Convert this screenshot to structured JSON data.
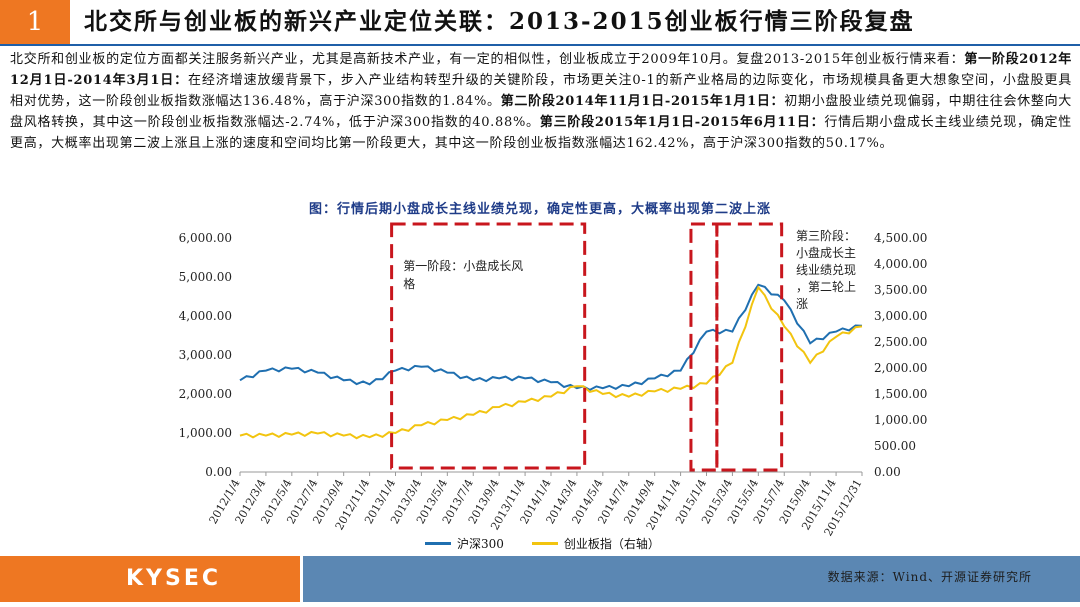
{
  "header": {
    "number": "1",
    "title": "北交所与创业板的新兴产业定位关联：2013-2015创业板行情三阶段复盘"
  },
  "paragraph": {
    "intro": "北交所和创业板的定位方面都关注服务新兴产业，尤其是高新技术产业，有一定的相似性，创业板成立于2009年10月。复盘2013-2015年创业板行情来看：",
    "p1_head": "第一阶段2012年12月1日-2014年3月1日：",
    "p1_body": "在经济增速放缓背景下，步入产业结构转型升级的关键阶段，市场更关注0-1的新产业格局的边际变化，市场规模具备更大想象空间，小盘股更具相对优势，这一阶段创业板指数涨幅达136.48%，高于沪深300指数的1.84%。",
    "p2_head": "第二阶段2014年11月1日-2015年1月1日：",
    "p2_body": "初期小盘股业绩兑现偏弱，中期往往会休整向大盘风格转换，其中这一阶段创业板指数涨幅达-2.74%，低于沪深300指数的40.88%。",
    "p3_head": "第三阶段2015年1月1日-2015年6月11日：",
    "p3_body": "行情后期小盘成长主线业绩兑现，确定性更高，大概率出现第二波上涨且上涨的速度和空间均比第一阶段更大，其中这一阶段创业板指数涨幅达162.42%，高于沪深300指数的50.17%。"
  },
  "figure_title": "图：行情后期小盘成长主线业绩兑现，确定性更高，大概率出现第二波上涨",
  "chart_data": {
    "type": "line",
    "x": [
      "2012/1/4",
      "2012/3/4",
      "2012/5/4",
      "2012/7/4",
      "2012/9/4",
      "2012/11/4",
      "2013/1/4",
      "2013/3/4",
      "2013/5/4",
      "2013/7/4",
      "2013/9/4",
      "2013/11/4",
      "2014/1/4",
      "2014/3/4",
      "2014/5/4",
      "2014/7/4",
      "2014/9/4",
      "2014/11/4",
      "2015/1/4",
      "2015/3/4",
      "2015/5/4",
      "2015/7/4",
      "2015/9/4",
      "2015/11/4",
      "2015/12/31"
    ],
    "y_left_ticks": [
      "0.00",
      "1,000.00",
      "2,000.00",
      "3,000.00",
      "4,000.00",
      "5,000.00",
      "6,000.00"
    ],
    "y_right_ticks": [
      "0.00",
      "500.00",
      "1,000.00",
      "1,500.00",
      "2,000.00",
      "2,500.00",
      "3,000.00",
      "3,500.00",
      "4,000.00",
      "4,500.00"
    ],
    "ylim_left": [
      0,
      6000
    ],
    "ylim_right": [
      0,
      4500
    ],
    "series": [
      {
        "name": "沪深300",
        "axis": "left",
        "color": "#1f6fb0",
        "values": [
          2350,
          2600,
          2650,
          2550,
          2350,
          2250,
          2600,
          2700,
          2550,
          2350,
          2400,
          2400,
          2300,
          2150,
          2150,
          2200,
          2400,
          2600,
          3600,
          3600,
          4800,
          4400,
          3300,
          3600,
          3750
        ]
      },
      {
        "name": "创业板指（右轴）",
        "axis": "right",
        "color": "#f2c40f",
        "values": [
          700,
          700,
          720,
          740,
          700,
          670,
          750,
          900,
          1000,
          1100,
          1250,
          1350,
          1450,
          1650,
          1500,
          1450,
          1550,
          1600,
          1700,
          2100,
          3550,
          2800,
          2100,
          2600,
          2800
        ]
      }
    ],
    "annotations": [
      {
        "text": "第一阶段：小盘成长风格"
      },
      {
        "text": "第三阶段：小盘成长主线业绩兑现，第二轮上涨"
      }
    ],
    "legend_position": "bottom"
  },
  "footer": {
    "logo": "KYSEC",
    "source": "数据来源：Wind、开源证券研究所"
  },
  "colors": {
    "accent": "#ee7722",
    "rule": "#1f5fa8",
    "footer_bar": "#5b87b3",
    "highlight_box": "#c8161d"
  }
}
